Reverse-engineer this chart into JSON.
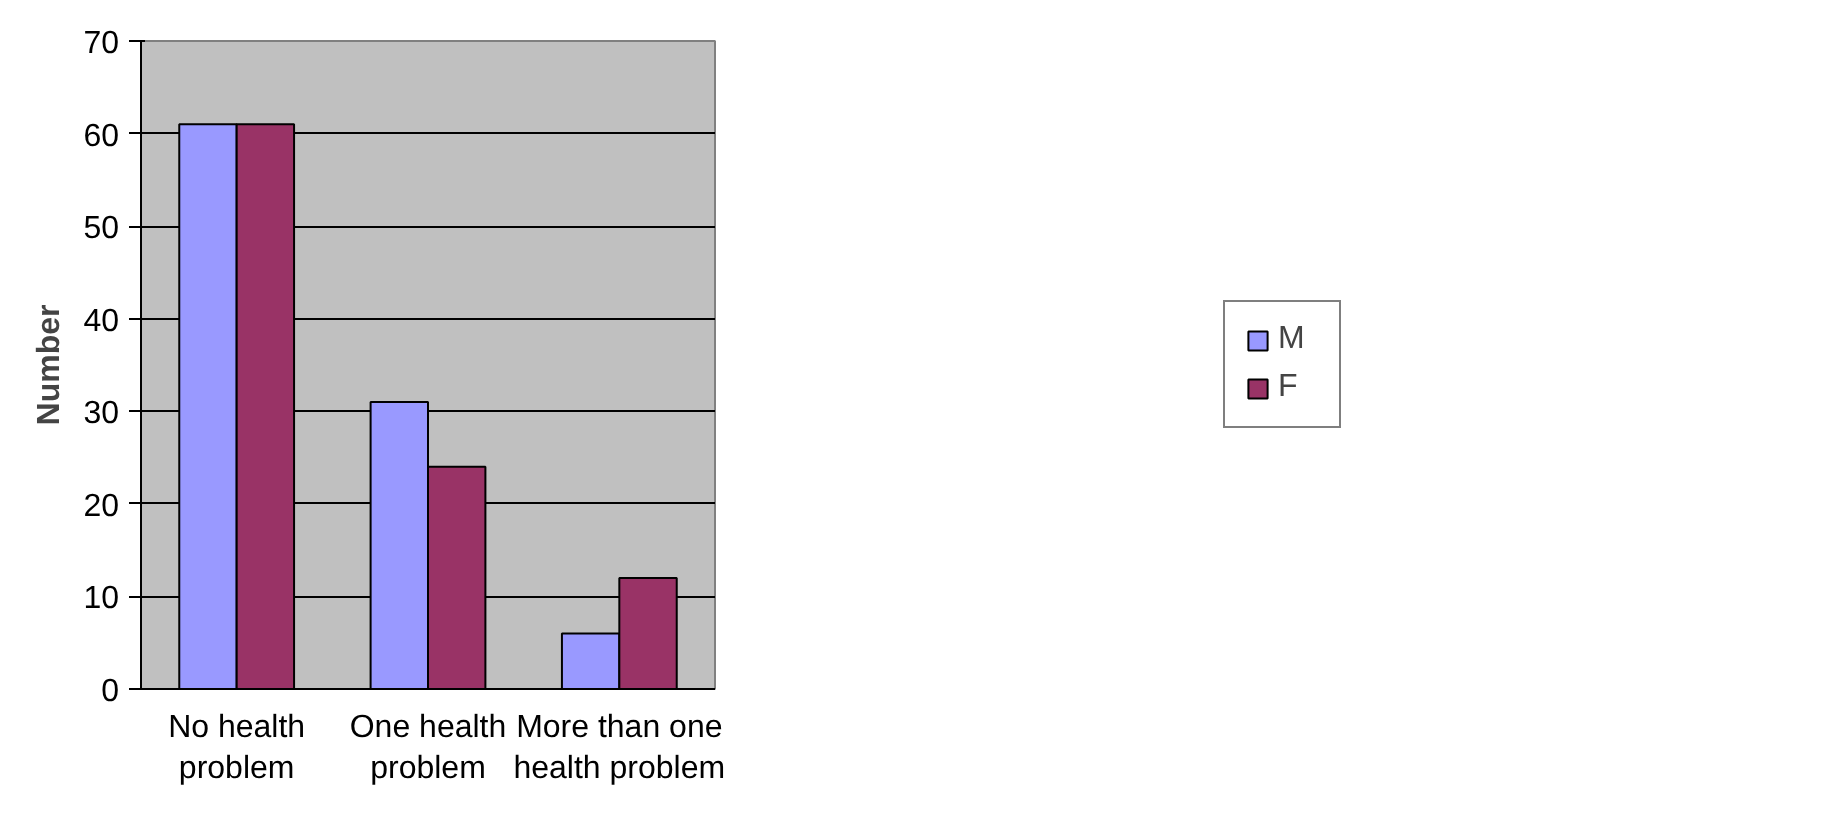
{
  "chart_data": {
    "type": "bar",
    "ylabel": "Number",
    "categories": [
      "No health problem",
      "One health problem",
      "More than one health problem"
    ],
    "series": [
      {
        "name": "M",
        "color": "#9999ff",
        "values": [
          61,
          31,
          6
        ]
      },
      {
        "name": "F",
        "color": "#993366",
        "values": [
          61,
          24,
          12
        ]
      }
    ],
    "ylim": [
      0,
      70
    ],
    "yticks": [
      0,
      10,
      20,
      30,
      40,
      50,
      60,
      70
    ],
    "grid": "y",
    "legend": "right"
  }
}
